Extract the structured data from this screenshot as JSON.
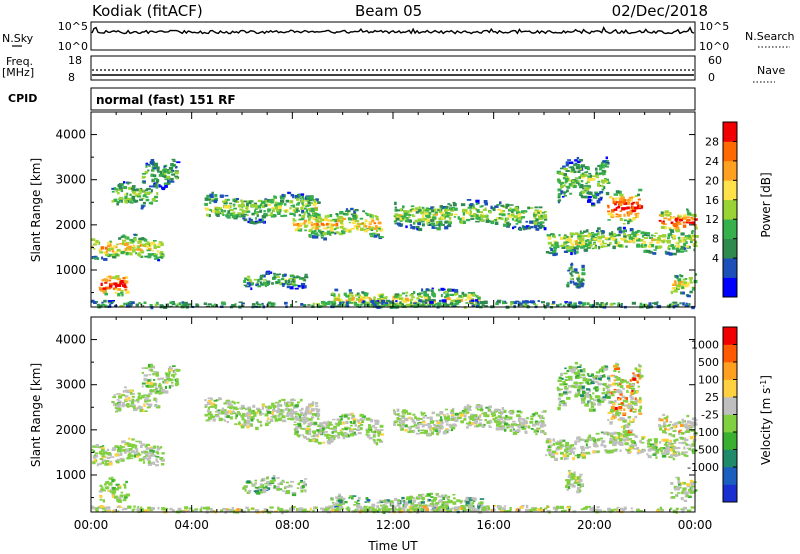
{
  "header": {
    "station": "Kodiak (fitACF)",
    "beam": "Beam 05",
    "date": "02/Dec/2018"
  },
  "status_rows": {
    "nsky": {
      "label": "N.Sky",
      "ticks": [
        "10^5",
        "10^0"
      ]
    },
    "nsearch": {
      "label": "N.Search",
      "ticks": [
        "10^5",
        "10^0"
      ]
    },
    "freq": {
      "label_line1": "Freq.",
      "label_line2": "[MHz]",
      "ticks": [
        "18",
        "8"
      ]
    },
    "nave": {
      "label": "Nave",
      "ticks": [
        "60",
        "0"
      ]
    },
    "cpid": {
      "label": "CPID",
      "value": "normal (fast) 151 RF"
    }
  },
  "chart_data": [
    {
      "type": "heatmap",
      "name": "power",
      "ylabel": "Slant Range [km]",
      "xlabel": "",
      "ylim": [
        180,
        4500
      ],
      "yticks": [
        "4000",
        "3000",
        "2000",
        "1000"
      ],
      "xlim_hours": [
        0,
        24
      ],
      "colorbar": {
        "label": "Power [dB]",
        "ticks": [
          "28",
          "24",
          "20",
          "16",
          "12",
          "8",
          "4"
        ],
        "colors": [
          "#0000ff",
          "#1c4fb8",
          "#2f8a4f",
          "#36b04b",
          "#9ad334",
          "#ffe24a",
          "#ffa020",
          "#ff6a00",
          "#f00000"
        ]
      },
      "echo_bands": [
        {
          "t0": 0.0,
          "t1": 2.8,
          "r0": 1300,
          "r1": 1750,
          "level": 0.6
        },
        {
          "t0": 0.3,
          "t1": 1.4,
          "r0": 500,
          "r1": 900,
          "level": 0.95
        },
        {
          "t0": 0.8,
          "t1": 2.6,
          "r0": 2450,
          "r1": 2900,
          "level": 0.4
        },
        {
          "t0": 2.0,
          "t1": 3.4,
          "r0": 2900,
          "r1": 3400,
          "level": 0.35
        },
        {
          "t0": 4.5,
          "t1": 9.0,
          "r0": 2150,
          "r1": 2650,
          "level": 0.45
        },
        {
          "t0": 8.0,
          "t1": 11.5,
          "r0": 1800,
          "r1": 2300,
          "level": 0.6
        },
        {
          "t0": 12.0,
          "t1": 18.0,
          "r0": 2000,
          "r1": 2500,
          "level": 0.45
        },
        {
          "t0": 18.0,
          "t1": 24.0,
          "r0": 1450,
          "r1": 1900,
          "level": 0.5
        },
        {
          "t0": 18.5,
          "t1": 20.5,
          "r0": 2600,
          "r1": 3400,
          "level": 0.4
        },
        {
          "t0": 20.5,
          "t1": 21.8,
          "r0": 2100,
          "r1": 2700,
          "level": 0.9
        },
        {
          "t0": 22.5,
          "t1": 24.0,
          "r0": 1900,
          "r1": 2300,
          "level": 0.85
        },
        {
          "t0": 9.5,
          "t1": 15.5,
          "r0": 180,
          "r1": 550,
          "level": 0.55
        },
        {
          "t0": 0.0,
          "t1": 24.0,
          "r0": 180,
          "r1": 330,
          "level": 0.3
        },
        {
          "t0": 6.0,
          "t1": 8.5,
          "r0": 650,
          "r1": 950,
          "level": 0.35
        },
        {
          "t0": 18.8,
          "t1": 19.5,
          "r0": 700,
          "r1": 1100,
          "level": 0.4
        },
        {
          "t0": 23.0,
          "t1": 24.0,
          "r0": 500,
          "r1": 900,
          "level": 0.6
        }
      ]
    },
    {
      "type": "heatmap",
      "name": "velocity",
      "ylabel": "Slant Range [km]",
      "xlabel": "Time UT",
      "ylim": [
        180,
        4500
      ],
      "yticks": [
        "4000",
        "3000",
        "2000",
        "1000"
      ],
      "xlim_hours": [
        0,
        24
      ],
      "xticks": [
        "00:00",
        "04:00",
        "08:00",
        "12:00",
        "16:00",
        "20:00",
        "00:00"
      ],
      "colorbar": {
        "label": "Velocity [m s^-1]",
        "ticks": [
          "1000",
          "500",
          "100",
          "25",
          "-25",
          "-100",
          "-500",
          "-1000"
        ],
        "colors": [
          "#1a2fd0",
          "#1a5ec0",
          "#1f8a6a",
          "#3ab030",
          "#80d040",
          "#bfbfbf",
          "#ffd040",
          "#ffa020",
          "#ff5a00",
          "#f00000"
        ]
      },
      "echo_bands": [
        {
          "t0": 0.0,
          "t1": 2.8,
          "r0": 1300,
          "r1": 1750,
          "level": 0.5
        },
        {
          "t0": 0.3,
          "t1": 1.4,
          "r0": 500,
          "r1": 900,
          "level": 0.5
        },
        {
          "t0": 0.8,
          "t1": 2.6,
          "r0": 2450,
          "r1": 2900,
          "level": 0.55
        },
        {
          "t0": 2.0,
          "t1": 3.4,
          "r0": 2900,
          "r1": 3400,
          "level": 0.5
        },
        {
          "t0": 4.5,
          "t1": 9.0,
          "r0": 2150,
          "r1": 2650,
          "level": 0.5
        },
        {
          "t0": 8.0,
          "t1": 11.5,
          "r0": 1800,
          "r1": 2300,
          "level": 0.5
        },
        {
          "t0": 12.0,
          "t1": 18.0,
          "r0": 2000,
          "r1": 2500,
          "level": 0.5
        },
        {
          "t0": 18.0,
          "t1": 24.0,
          "r0": 1450,
          "r1": 1900,
          "level": 0.5
        },
        {
          "t0": 18.5,
          "t1": 20.5,
          "r0": 2600,
          "r1": 3400,
          "level": 0.35
        },
        {
          "t0": 20.5,
          "t1": 21.8,
          "r0": 2100,
          "r1": 3300,
          "level": 0.8
        },
        {
          "t0": 22.5,
          "t1": 24.0,
          "r0": 1900,
          "r1": 2300,
          "level": 0.7
        },
        {
          "t0": 9.5,
          "t1": 15.5,
          "r0": 180,
          "r1": 550,
          "level": 0.3
        },
        {
          "t0": 0.0,
          "t1": 24.0,
          "r0": 180,
          "r1": 330,
          "level": 0.6
        },
        {
          "t0": 6.0,
          "t1": 8.5,
          "r0": 650,
          "r1": 950,
          "level": 0.3
        },
        {
          "t0": 18.8,
          "t1": 19.5,
          "r0": 700,
          "r1": 1100,
          "level": 0.5
        },
        {
          "t0": 23.0,
          "t1": 24.0,
          "r0": 500,
          "r1": 900,
          "level": 0.5
        }
      ]
    }
  ]
}
